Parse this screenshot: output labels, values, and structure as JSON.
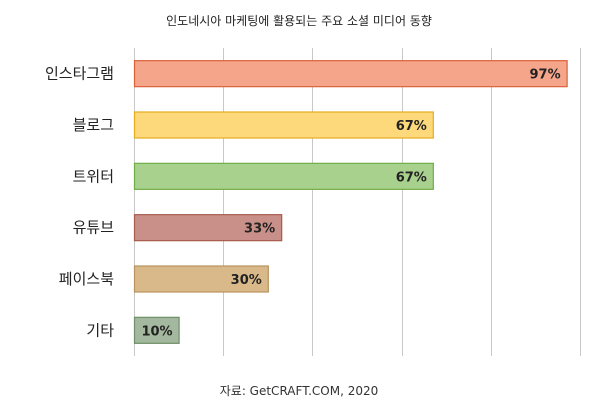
{
  "chart_data": {
    "type": "bar",
    "orientation": "horizontal",
    "title": "인도네시아 마케팅에 활용되는 주요 소셜 미디어 동향",
    "categories": [
      "인스타그램",
      "블로그",
      "트위터",
      "유튜브",
      "페이스북",
      "기타"
    ],
    "values": [
      97,
      67,
      67,
      33,
      30,
      10
    ],
    "value_labels": [
      "97%",
      "67%",
      "67%",
      "33%",
      "30%",
      "10%"
    ],
    "bar_colors": [
      {
        "fill": "#f4a58a",
        "stroke": "#d9623a"
      },
      {
        "fill": "#fdd97c",
        "stroke": "#e6ad1e"
      },
      {
        "fill": "#a9d18e",
        "stroke": "#70ad47"
      },
      {
        "fill": "#c9908a",
        "stroke": "#a65c4d"
      },
      {
        "fill": "#d9b98a",
        "stroke": "#b8925e"
      },
      {
        "fill": "#a3b89e",
        "stroke": "#6f8f66"
      }
    ],
    "xlim": [
      0,
      100
    ],
    "grid": true,
    "legend": "none"
  },
  "source": "자료: GetCRAFT.COM, 2020"
}
